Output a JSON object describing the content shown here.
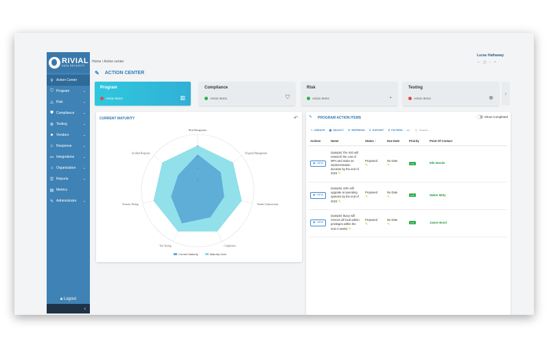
{
  "app": {
    "logo_name": "RIVIAL",
    "logo_sub": "DATA SECURITY",
    "breadcrumb": "Home / Action center",
    "user": "Lucas Hathaway",
    "page_title": "ACTION CENTER"
  },
  "sidebar": {
    "items": [
      {
        "label": "Action Center",
        "icon": "⚲"
      },
      {
        "label": "Program",
        "icon": "⛉"
      },
      {
        "label": "Risk",
        "icon": "⚠"
      },
      {
        "label": "Compliance",
        "icon": "⛊"
      },
      {
        "label": "Testing",
        "icon": "⚙"
      },
      {
        "label": "Vendors",
        "icon": "⚑"
      },
      {
        "label": "Response",
        "icon": "⚐"
      },
      {
        "label": "Integrations",
        "icon": "⚯"
      },
      {
        "label": "Organization",
        "icon": "⌂"
      },
      {
        "label": "Reports",
        "icon": "☰"
      },
      {
        "label": "Metrics",
        "icon": "▤"
      },
      {
        "label": "Administrator",
        "icon": "✎"
      }
    ],
    "logout": "Logout"
  },
  "cards": [
    {
      "title": "Program",
      "sub": "Action Items",
      "status_color": "#e04848"
    },
    {
      "title": "Compliance",
      "sub": "Action Items",
      "status_color": "#2fae4b"
    },
    {
      "title": "Risk",
      "sub": "Action Items",
      "status_color": "#2fae4b"
    },
    {
      "title": "Testing",
      "sub": "Action Items",
      "status_color": "#e04848"
    }
  ],
  "maturity": {
    "title": "CURRENT MATURITY",
    "legend_current": "Current Maturity",
    "legend_goal": "Maturity Goal"
  },
  "chart_data": {
    "type": "radar",
    "categories": [
      "Risk Management",
      "Program Management",
      "Vendor Cybersecurity",
      "Compliance",
      "Test Testing",
      "Security Testing",
      "Incident Response"
    ],
    "series": [
      {
        "name": "Current Maturity",
        "values": [
          3.2,
          2.6,
          2.4,
          2.6,
          3.2,
          2.4,
          2.2
        ],
        "color": "#5aa8d6"
      },
      {
        "name": "Maturity Goal",
        "values": [
          4.0,
          4.0,
          4.0,
          4.0,
          4.0,
          4.0,
          4.0
        ],
        "color": "#7fdbe6"
      }
    ],
    "rmax": 5
  },
  "action_items": {
    "title": "PROGRAM ACTION ITEMS",
    "show_completed": "Show Completed",
    "toolbar": {
      "create": "CREATE",
      "select": "SELECT",
      "refresh": "REFRESH",
      "export": "EXPORT",
      "filters": "FILTERS",
      "more": "•••",
      "search_placeholder": "Search..."
    },
    "columns": [
      "Actions",
      "Name",
      "Status ↑",
      "Due Date",
      "Priority",
      "Point Of Contact"
    ],
    "rows": [
      {
        "view": "VIEW",
        "name": "(sample) The ISO will research the cost of MFA and make an implementation decision by the end of 2023",
        "status": "Proposed",
        "due": "No Date",
        "priority": "Low",
        "poc": "Elle Woods"
      },
      {
        "view": "VIEW",
        "name": "(sample) John will upgrade at operating systems by the end of 2023",
        "status": "Proposed",
        "due": "No Date",
        "priority": "Low",
        "poc": "Walter Mitty"
      },
      {
        "view": "VIEW",
        "name": "(sample) Stacy will remove all local admin privileges within the next 4 weeks",
        "status": "Proposed",
        "due": "No Date",
        "priority": "Low",
        "poc": "James Bond"
      }
    ]
  }
}
